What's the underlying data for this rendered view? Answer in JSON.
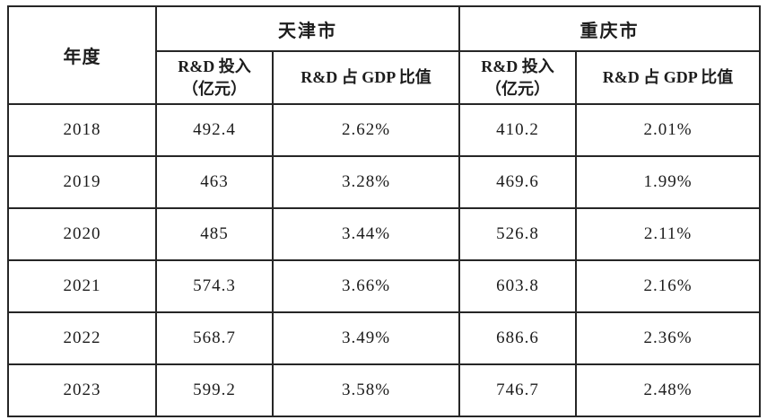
{
  "table": {
    "header": {
      "year_label": "年度",
      "city_groups": [
        {
          "city": "天津市",
          "rd_input_line1": "R&D 投入",
          "rd_input_line2": "（亿元）",
          "gdp_ratio_label": "R&D 占 GDP 比值"
        },
        {
          "city": "重庆市",
          "rd_input_line1": "R&D 投入",
          "rd_input_line2": "（亿元）",
          "gdp_ratio_label": "R&D 占 GDP 比值"
        }
      ]
    },
    "rows": [
      {
        "year": "2018",
        "tj_rd": "492.4",
        "tj_ratio": "2.62%",
        "cq_rd": "410.2",
        "cq_ratio": "2.01%"
      },
      {
        "year": "2019",
        "tj_rd": "463",
        "tj_ratio": "3.28%",
        "cq_rd": "469.6",
        "cq_ratio": "1.99%"
      },
      {
        "year": "2020",
        "tj_rd": "485",
        "tj_ratio": "3.44%",
        "cq_rd": "526.8",
        "cq_ratio": "2.11%"
      },
      {
        "year": "2021",
        "tj_rd": "574.3",
        "tj_ratio": "3.66%",
        "cq_rd": "603.8",
        "cq_ratio": "2.16%"
      },
      {
        "year": "2022",
        "tj_rd": "568.7",
        "tj_ratio": "3.49%",
        "cq_rd": "686.6",
        "cq_ratio": "2.36%"
      },
      {
        "year": "2023",
        "tj_rd": "599.2",
        "tj_ratio": "3.58%",
        "cq_rd": "746.7",
        "cq_ratio": "2.48%"
      }
    ],
    "colors": {
      "border": "#262626",
      "text": "#1c1c1c",
      "background": "#ffffff"
    }
  }
}
